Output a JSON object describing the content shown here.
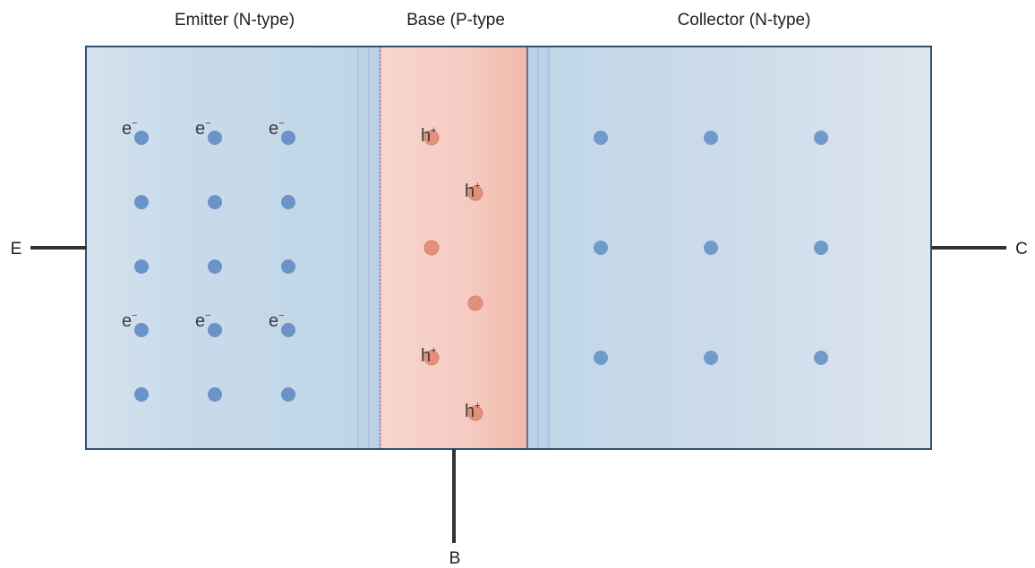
{
  "regions": {
    "emitter": {
      "label": "Emitter (N-type)"
    },
    "base": {
      "label": "Base (P-type"
    },
    "collector": {
      "label": "Collector (N-type)"
    }
  },
  "terminals": {
    "emitter": "E",
    "base": "B",
    "collector": "C"
  },
  "carriers": {
    "electron_symbol": "e",
    "electron_sign": "−",
    "hole_symbol": "h",
    "hole_sign": "+"
  },
  "colors": {
    "n_region": "#c7d9e8",
    "p_region": "#f6cdc4",
    "electron_dot": "#6b93c9",
    "hole_dot": "#e2907a",
    "outline": "#2f4f74",
    "lead": "#333333"
  }
}
